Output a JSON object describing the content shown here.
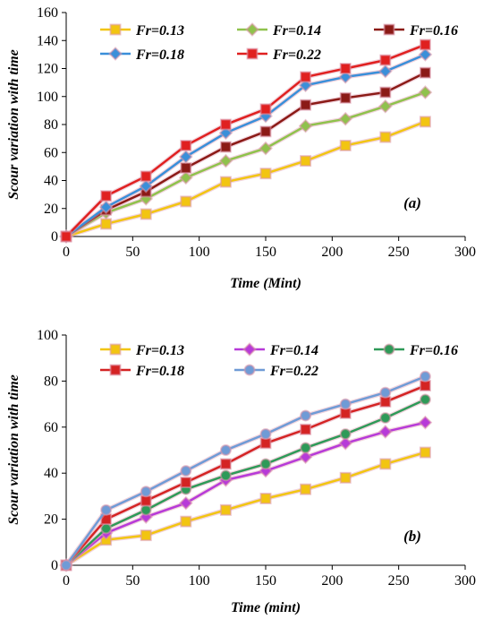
{
  "chart_data": [
    {
      "type": "line",
      "panel_label": "(a)",
      "xlabel": "Time (Mint)",
      "ylabel": "Scour variation with time",
      "xlim": [
        0,
        300
      ],
      "ylim": [
        0,
        160
      ],
      "xticks": [
        0,
        50,
        100,
        150,
        200,
        250,
        300
      ],
      "yticks": [
        0,
        20,
        40,
        60,
        80,
        100,
        120,
        140,
        160
      ],
      "x": [
        0,
        30,
        60,
        90,
        120,
        150,
        180,
        210,
        240,
        270
      ],
      "grid": false,
      "legend": "top",
      "series": [
        {
          "name": "Fr=0.13",
          "color": "#f2c511",
          "marker": "square",
          "values": [
            0,
            9,
            16,
            25,
            39,
            45,
            54,
            65,
            71,
            82
          ]
        },
        {
          "name": "Fr=0.14",
          "color": "#8fc24c",
          "marker": "diamond",
          "values": [
            0,
            17,
            27,
            42,
            54,
            63,
            79,
            84,
            93,
            103
          ]
        },
        {
          "name": "Fr=0.16",
          "color": "#8b1a16",
          "marker": "square",
          "values": [
            0,
            19,
            32,
            49,
            64,
            75,
            94,
            99,
            103,
            117
          ]
        },
        {
          "name": "Fr=0.18",
          "color": "#3a8fd9",
          "marker": "diamond",
          "values": [
            0,
            21,
            36,
            57,
            74,
            86,
            108,
            114,
            118,
            130
          ]
        },
        {
          "name": "Fr=0.22",
          "color": "#e02020",
          "marker": "square",
          "values": [
            0,
            29,
            43,
            65,
            80,
            91,
            114,
            120,
            126,
            137
          ]
        }
      ]
    },
    {
      "type": "line",
      "panel_label": "(b)",
      "xlabel": "Time (mint)",
      "ylabel": "Scour variation with time",
      "xlim": [
        0,
        300
      ],
      "ylim": [
        0,
        100
      ],
      "xticks": [
        0,
        50,
        100,
        150,
        200,
        250,
        300
      ],
      "yticks": [
        0,
        20,
        40,
        60,
        80,
        100
      ],
      "x": [
        0,
        30,
        60,
        90,
        120,
        150,
        180,
        210,
        240,
        270
      ],
      "grid": false,
      "legend": "top",
      "series": [
        {
          "name": "Fr=0.13",
          "color": "#f2c511",
          "marker": "square",
          "values": [
            0,
            11,
            13,
            19,
            24,
            29,
            33,
            38,
            44,
            49
          ]
        },
        {
          "name": "Fr=0.14",
          "color": "#b73ad8",
          "marker": "diamond",
          "values": [
            0,
            14,
            21,
            27,
            37,
            41,
            47,
            53,
            58,
            62
          ]
        },
        {
          "name": "Fr=0.16",
          "color": "#2e9a58",
          "marker": "circle",
          "values": [
            0,
            16,
            24,
            33,
            39,
            44,
            51,
            57,
            64,
            72
          ]
        },
        {
          "name": "Fr=0.18",
          "color": "#d42323",
          "marker": "square",
          "values": [
            0,
            20,
            28,
            36,
            44,
            53,
            59,
            66,
            71,
            78
          ]
        },
        {
          "name": "Fr=0.22",
          "color": "#6f9bd6",
          "marker": "circle",
          "values": [
            0,
            24,
            32,
            41,
            50,
            57,
            65,
            70,
            75,
            82
          ]
        }
      ]
    }
  ]
}
